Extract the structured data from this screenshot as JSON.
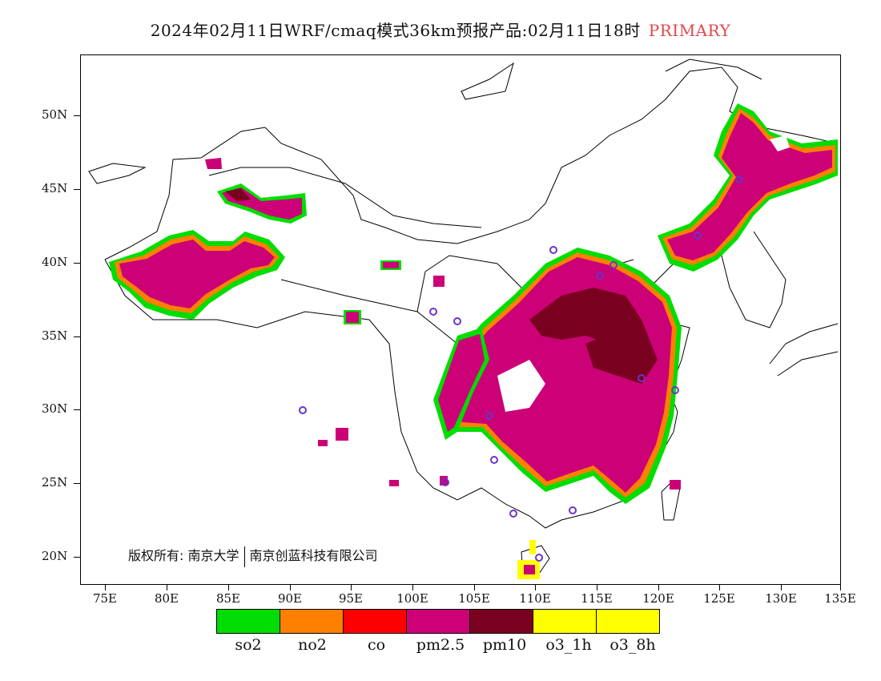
{
  "header": {
    "title": "2024年02月11日WRF/cmaq模式36km预报产品:02月11日18时",
    "tag": "PRIMARY"
  },
  "axes": {
    "lat_labels": [
      "50N",
      "45N",
      "40N",
      "35N",
      "30N",
      "25N",
      "20N"
    ],
    "lon_labels": [
      "75E",
      "80E",
      "85E",
      "90E",
      "95E",
      "100E",
      "105E",
      "110E",
      "115E",
      "120E",
      "125E",
      "130E",
      "135E"
    ],
    "lon_range": [
      73,
      135
    ],
    "lat_range": [
      18,
      54
    ]
  },
  "copyright": {
    "prefix": "版权所有:",
    "org1": "南京大学",
    "org2": "南京创蓝科技有限公司"
  },
  "legend": [
    {
      "label": "so2",
      "color": "#00dd00"
    },
    {
      "label": "no2",
      "color": "#ff8000"
    },
    {
      "label": "co",
      "color": "#ff0000"
    },
    {
      "label": "pm2.5",
      "color": "#cc0077"
    },
    {
      "label": "pm10",
      "color": "#7a0020"
    },
    {
      "label": "o3_1h",
      "color": "#ffff00"
    },
    {
      "label": "o3_8h",
      "color": "#ffff00"
    }
  ],
  "colors": {
    "outline": "#000000",
    "city_marker": "#6a33cc"
  }
}
